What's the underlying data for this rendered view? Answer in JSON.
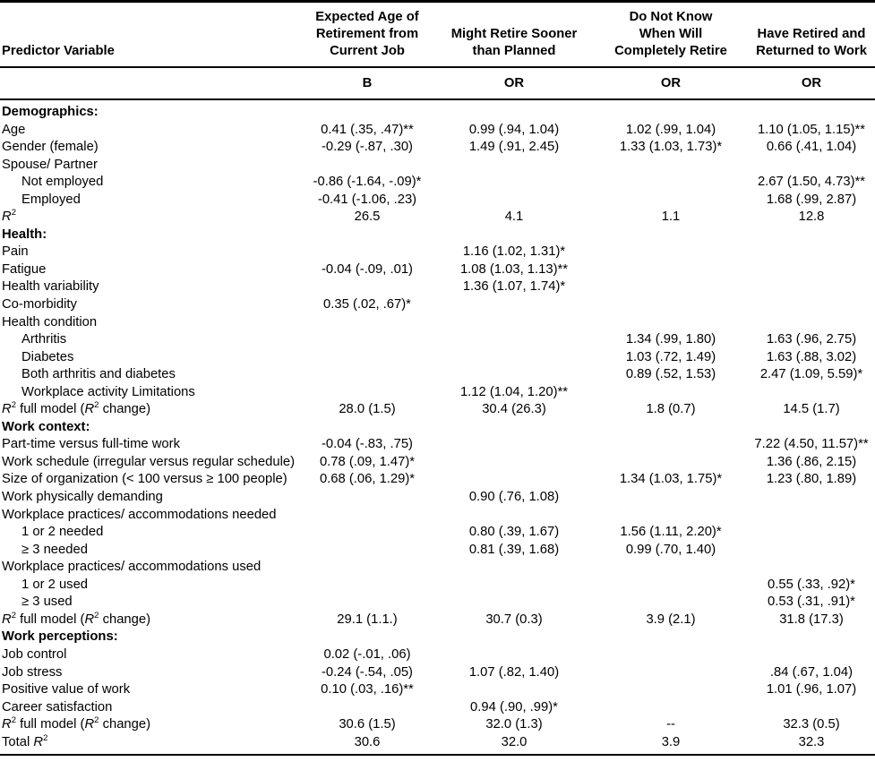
{
  "colors": {
    "text": "#000000",
    "background": "#ffffff",
    "rule": "#000000"
  },
  "table": {
    "header": {
      "predictor_label": "Predictor Variable",
      "columns": [
        {
          "title": "Expected Age of Retirement from Current Job",
          "lines": [
            "Expected Age of",
            "Retirement from",
            "Current Job"
          ],
          "stat": "B"
        },
        {
          "title": "Might Retire Sooner than Planned",
          "lines": [
            "Might Retire Sooner",
            "than Planned"
          ],
          "stat": "OR"
        },
        {
          "title": "Do Not Know When Will Completely Retire",
          "lines": [
            "Do Not Know",
            "When Will",
            "Completely Retire"
          ],
          "stat": "OR"
        },
        {
          "title": "Have Retired and Returned to Work",
          "lines": [
            "Have Retired and",
            "Returned to Work"
          ],
          "stat": "OR"
        }
      ]
    },
    "rows": [
      {
        "label": "Demographics:",
        "bold": true,
        "values": [
          "",
          "",
          "",
          ""
        ]
      },
      {
        "label": "Age",
        "values": [
          "0.41 (.35, .47)**",
          "0.99 (.94, 1.04)",
          "1.02 (.99, 1.04)",
          "1.10 (1.05, 1.15)**"
        ]
      },
      {
        "label": "Gender (female)",
        "values": [
          "-0.29 (-.87, .30)",
          "1.49 (.91, 2.45)",
          "1.33 (1.03, 1.73)*",
          "0.66 (.41, 1.04)"
        ]
      },
      {
        "label": "Spouse/ Partner",
        "values": [
          "",
          "",
          "",
          ""
        ]
      },
      {
        "label": "Not employed",
        "indent": 1,
        "values": [
          "-0.86 (-1.64, -.09)*",
          "",
          "",
          "2.67 (1.50, 4.73)**"
        ]
      },
      {
        "label": "Employed",
        "indent": 1,
        "values": [
          "-0.41 (-1.06, .23)",
          "",
          "",
          "1.68 (.99, 2.87)"
        ]
      },
      {
        "label": "R^2",
        "values": [
          "26.5",
          "4.1",
          "1.1",
          "12.8"
        ]
      },
      {
        "label": "Health:",
        "bold": true,
        "values": [
          "",
          "",
          "",
          ""
        ]
      },
      {
        "label": "Pain",
        "values": [
          "",
          "1.16 (1.02, 1.31)*",
          "",
          ""
        ]
      },
      {
        "label": "Fatigue",
        "values": [
          "-0.04 (-.09, .01)",
          "1.08 (1.03, 1.13)**",
          "",
          ""
        ]
      },
      {
        "label": "Health variability",
        "values": [
          "",
          "1.36 (1.07, 1.74)*",
          "",
          ""
        ]
      },
      {
        "label": "Co-morbidity",
        "values": [
          "0.35 (.02, .67)*",
          "",
          "",
          ""
        ]
      },
      {
        "label": "Health condition",
        "values": [
          "",
          "",
          "",
          ""
        ]
      },
      {
        "label": "Arthritis",
        "indent": 1,
        "values": [
          "",
          "",
          "1.34 (.99, 1.80)",
          "1.63 (.96, 2.75)"
        ]
      },
      {
        "label": "Diabetes",
        "indent": 1,
        "values": [
          "",
          "",
          "1.03 (.72, 1.49)",
          "1.63 (.88, 3.02)"
        ]
      },
      {
        "label": "Both arthritis and diabetes",
        "indent": 1,
        "values": [
          "",
          "",
          "0.89 (.52, 1.53)",
          "2.47 (1.09, 5.59)*"
        ]
      },
      {
        "label": "Workplace activity Limitations",
        "indent": 1,
        "values": [
          "",
          "1.12 (1.04, 1.20)**",
          "",
          ""
        ]
      },
      {
        "label": "R^2 full model (R^2 change)",
        "values": [
          "28.0 (1.5)",
          "30.4 (26.3)",
          "1.8 (0.7)",
          "14.5 (1.7)"
        ]
      },
      {
        "label": "Work context:",
        "bold": true,
        "values": [
          "",
          "",
          "",
          ""
        ]
      },
      {
        "label": "Part-time versus full-time work",
        "values": [
          "-0.04 (-.83, .75)",
          "",
          "",
          "7.22 (4.50, 11.57)**"
        ]
      },
      {
        "label": "Work schedule (irregular versus regular schedule)",
        "values": [
          "0.78 (.09, 1.47)*",
          "",
          "",
          "1.36 (.86, 2.15)"
        ]
      },
      {
        "label": "Size of organization (< 100 versus ≥ 100 people)",
        "values": [
          "0.68 (.06, 1.29)*",
          "",
          "1.34 (1.03, 1.75)*",
          "1.23 (.80, 1.89)"
        ]
      },
      {
        "label": "Work physically demanding",
        "values": [
          "",
          "0.90 (.76, 1.08)",
          "",
          ""
        ]
      },
      {
        "label": "Workplace practices/ accommodations needed",
        "values": [
          "",
          "",
          "",
          ""
        ]
      },
      {
        "label": "1 or 2 needed",
        "indent": 1,
        "values": [
          "",
          "0.80 (.39, 1.67)",
          "1.56 (1.11, 2.20)*",
          ""
        ]
      },
      {
        "label": "≥ 3 needed",
        "indent": 1,
        "values": [
          "",
          "0.81 (.39, 1.68)",
          "0.99 (.70, 1.40)",
          ""
        ]
      },
      {
        "label": "Workplace practices/ accommodations used",
        "values": [
          "",
          "",
          "",
          ""
        ]
      },
      {
        "label": "1 or 2 used",
        "indent": 1,
        "values": [
          "",
          "",
          "",
          "0.55 (.33, .92)*"
        ]
      },
      {
        "label": "≥ 3 used",
        "indent": 1,
        "values": [
          "",
          "",
          "",
          "0.53 (.31, .91)*"
        ]
      },
      {
        "label": "R^2 full model (R^2 change)",
        "values": [
          "29.1 (1.1.)",
          "30.7 (0.3)",
          "3.9 (2.1)",
          "31.8 (17.3)"
        ]
      },
      {
        "label": "Work perceptions:",
        "bold": true,
        "values": [
          "",
          "",
          "",
          ""
        ]
      },
      {
        "label": "Job control",
        "values": [
          "0.02 (-.01, .06)",
          "",
          "",
          ""
        ]
      },
      {
        "label": "Job stress",
        "values": [
          "-0.24 (-.54, .05)",
          "1.07 (.82, 1.40)",
          "",
          ".84 (.67, 1.04)"
        ]
      },
      {
        "label": "Positive value of work",
        "values": [
          "0.10 (.03, .16)**",
          "",
          "",
          "1.01 (.96, 1.07)"
        ]
      },
      {
        "label": "Career satisfaction",
        "values": [
          "",
          "0.94 (.90, .99)*",
          "",
          ""
        ]
      },
      {
        "label": "R^2 full model (R^2 change)",
        "values": [
          "30.6 (1.5)",
          "32.0 (1.3)",
          "--",
          "32.3 (0.5)"
        ]
      },
      {
        "label": "Total R^2",
        "values": [
          "30.6",
          "32.0",
          "3.9",
          "32.3"
        ]
      }
    ]
  }
}
